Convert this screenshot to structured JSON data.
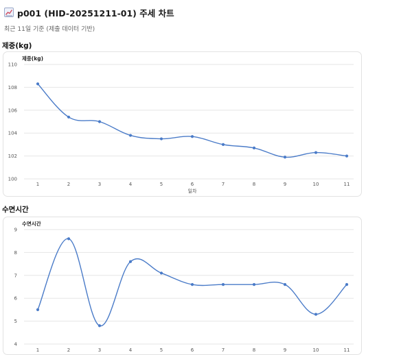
{
  "header": {
    "title": "p001 (HID-20251211-01) 주세 차트",
    "subtitle": "최근 11일 기준 (제출 데이터 기반)"
  },
  "icon": "line-chart-icon",
  "colors": {
    "line": "#4a7bc8",
    "grid": "#e6e6e6",
    "axis_text": "#555555"
  },
  "sections": [
    {
      "title": "제중(kg)"
    },
    {
      "title": "수면시간"
    }
  ],
  "chart_data": [
    {
      "type": "line",
      "title": "제중(kg)",
      "xlabel": "일차",
      "ylabel": "",
      "x": [
        1,
        2,
        3,
        4,
        5,
        6,
        7,
        8,
        9,
        10,
        11
      ],
      "series": [
        {
          "values": [
            108.3,
            105.4,
            105.0,
            103.8,
            103.5,
            103.7,
            103.0,
            102.7,
            101.9,
            102.3,
            102.0
          ]
        }
      ],
      "ylim": [
        100,
        110
      ],
      "yticks": [
        100,
        102,
        104,
        106,
        108,
        110
      ],
      "grid": true,
      "smooth": true
    },
    {
      "type": "line",
      "title": "수면시간",
      "xlabel": "",
      "ylabel": "",
      "x": [
        1,
        2,
        3,
        4,
        5,
        6,
        7,
        8,
        9,
        10,
        11
      ],
      "series": [
        {
          "values": [
            5.5,
            8.6,
            4.8,
            7.6,
            7.1,
            6.6,
            6.6,
            6.6,
            6.6,
            5.3,
            6.6
          ]
        }
      ],
      "ylim": [
        4,
        9
      ],
      "yticks": [
        4,
        5,
        6,
        7,
        8,
        9
      ],
      "grid": true,
      "smooth": true
    }
  ]
}
